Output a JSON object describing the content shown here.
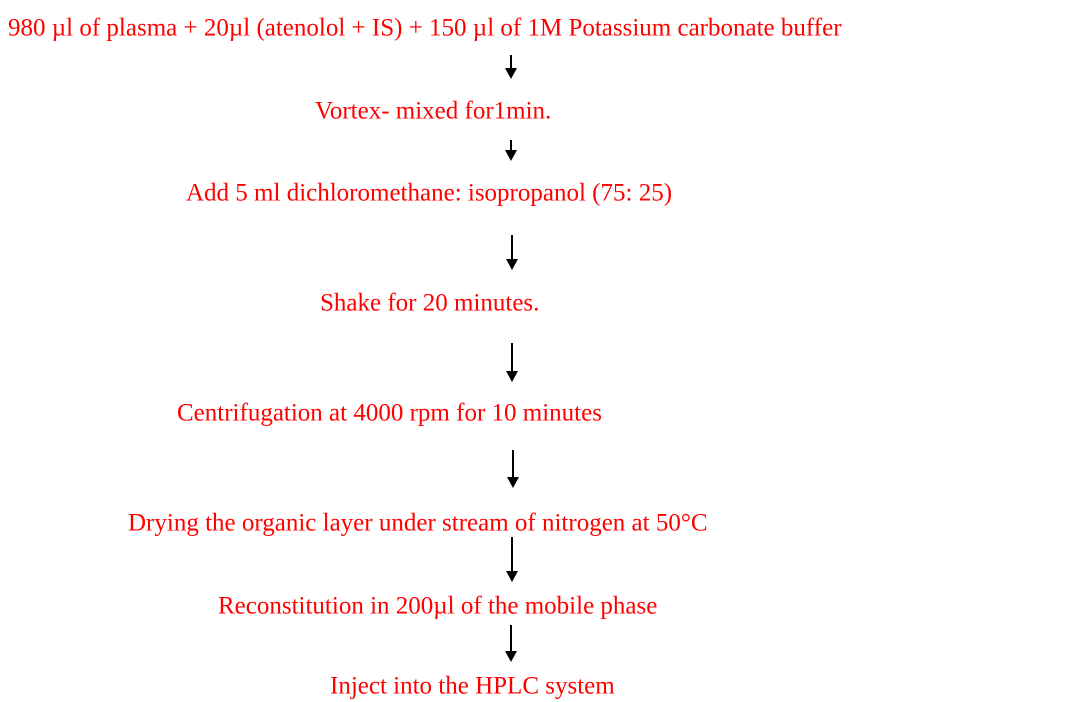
{
  "steps": [
    "980 µl of plasma + 20µl (atenolol + IS) + 150 µl of 1M Potassium carbonate buffer",
    "Vortex- mixed for1min.",
    "Add 5 ml dichloromethane: isopropanol (75: 25)",
    "Shake for 20 minutes.",
    "Centrifugation at 4000 rpm for 10 minutes",
    "Drying the organic layer under stream of nitrogen at 50°C",
    "Reconstitution in 200µl of the mobile phase",
    "Inject into the HPLC system"
  ]
}
